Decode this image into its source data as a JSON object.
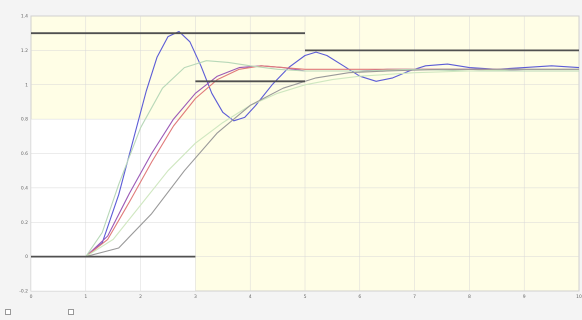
{
  "chart_data": {
    "type": "line",
    "title": "",
    "xlabel": "",
    "ylabel": "",
    "xlim": [
      0,
      10
    ],
    "ylim": [
      -0.2,
      1.4
    ],
    "xticks": [
      0,
      1,
      2,
      3,
      4,
      5,
      6,
      7,
      8,
      9,
      10
    ],
    "yticks": [
      -0.2,
      0,
      0.2,
      0.4,
      0.6,
      0.8,
      1.0,
      1.2,
      1.4
    ],
    "grid": true,
    "background": "#fffee6",
    "white_region": {
      "x": [
        0,
        3
      ],
      "y": [
        -0.2,
        0.8
      ]
    },
    "series": [
      {
        "color": "#5b5bd6",
        "points": [
          [
            0,
            0
          ],
          [
            1.0,
            0
          ],
          [
            1.3,
            0.08
          ],
          [
            1.6,
            0.36
          ],
          [
            1.9,
            0.72
          ],
          [
            2.1,
            0.96
          ],
          [
            2.3,
            1.16
          ],
          [
            2.5,
            1.28
          ],
          [
            2.7,
            1.31
          ],
          [
            2.9,
            1.25
          ],
          [
            3.1,
            1.11
          ],
          [
            3.3,
            0.95
          ],
          [
            3.5,
            0.84
          ],
          [
            3.7,
            0.79
          ],
          [
            3.9,
            0.81
          ],
          [
            4.1,
            0.88
          ],
          [
            4.4,
            1.0
          ],
          [
            4.7,
            1.1
          ],
          [
            5.0,
            1.17
          ],
          [
            5.2,
            1.19
          ],
          [
            5.4,
            1.17
          ],
          [
            5.7,
            1.11
          ],
          [
            6.0,
            1.05
          ],
          [
            6.3,
            1.02
          ],
          [
            6.6,
            1.04
          ],
          [
            6.9,
            1.08
          ],
          [
            7.2,
            1.11
          ],
          [
            7.6,
            1.12
          ],
          [
            8.0,
            1.1
          ],
          [
            8.5,
            1.09
          ],
          [
            9.0,
            1.1
          ],
          [
            9.5,
            1.11
          ],
          [
            10,
            1.1
          ]
        ]
      },
      {
        "color": "#9b59b6",
        "points": [
          [
            0,
            0
          ],
          [
            1.0,
            0
          ],
          [
            1.4,
            0.12
          ],
          [
            1.8,
            0.37
          ],
          [
            2.2,
            0.6
          ],
          [
            2.6,
            0.8
          ],
          [
            3.0,
            0.95
          ],
          [
            3.4,
            1.05
          ],
          [
            3.8,
            1.1
          ],
          [
            4.2,
            1.11
          ],
          [
            4.6,
            1.1
          ],
          [
            5.0,
            1.08
          ],
          [
            5.5,
            1.08
          ],
          [
            6.0,
            1.08
          ],
          [
            6.5,
            1.09
          ],
          [
            7.0,
            1.09
          ],
          [
            8.0,
            1.09
          ],
          [
            9.0,
            1.08
          ],
          [
            10,
            1.08
          ]
        ]
      },
      {
        "color": "#e07a7a",
        "points": [
          [
            0,
            0
          ],
          [
            1.0,
            0
          ],
          [
            1.4,
            0.1
          ],
          [
            1.8,
            0.32
          ],
          [
            2.2,
            0.55
          ],
          [
            2.6,
            0.76
          ],
          [
            3.0,
            0.92
          ],
          [
            3.4,
            1.03
          ],
          [
            3.8,
            1.09
          ],
          [
            4.2,
            1.11
          ],
          [
            4.6,
            1.1
          ],
          [
            5.0,
            1.09
          ],
          [
            6.0,
            1.09
          ],
          [
            7.0,
            1.09
          ],
          [
            8.0,
            1.09
          ],
          [
            10,
            1.09
          ]
        ]
      },
      {
        "color": "#b8d8b8",
        "points": [
          [
            0,
            0
          ],
          [
            1.0,
            0
          ],
          [
            1.3,
            0.14
          ],
          [
            1.6,
            0.42
          ],
          [
            2.0,
            0.75
          ],
          [
            2.4,
            0.98
          ],
          [
            2.8,
            1.1
          ],
          [
            3.2,
            1.14
          ],
          [
            3.6,
            1.13
          ],
          [
            4.0,
            1.11
          ],
          [
            4.5,
            1.09
          ],
          [
            5.0,
            1.08
          ],
          [
            6.0,
            1.08
          ],
          [
            7.0,
            1.09
          ],
          [
            8.0,
            1.08
          ],
          [
            10,
            1.08
          ]
        ]
      },
      {
        "color": "#cfe7c0",
        "points": [
          [
            0,
            0
          ],
          [
            1.0,
            0
          ],
          [
            1.5,
            0.1
          ],
          [
            2.0,
            0.3
          ],
          [
            2.5,
            0.5
          ],
          [
            3.0,
            0.66
          ],
          [
            3.5,
            0.78
          ],
          [
            4.0,
            0.88
          ],
          [
            4.5,
            0.95
          ],
          [
            5.0,
            1.0
          ],
          [
            5.5,
            1.03
          ],
          [
            6.0,
            1.05
          ],
          [
            7.0,
            1.07
          ],
          [
            8.0,
            1.08
          ],
          [
            9.0,
            1.09
          ],
          [
            10,
            1.09
          ]
        ]
      },
      {
        "color": "#999999",
        "points": [
          [
            0,
            0
          ],
          [
            1.0,
            0
          ],
          [
            1.6,
            0.05
          ],
          [
            2.2,
            0.25
          ],
          [
            2.8,
            0.5
          ],
          [
            3.4,
            0.72
          ],
          [
            4.0,
            0.88
          ],
          [
            4.6,
            0.98
          ],
          [
            5.2,
            1.04
          ],
          [
            5.8,
            1.07
          ],
          [
            6.5,
            1.08
          ],
          [
            7.5,
            1.09
          ],
          [
            8.5,
            1.09
          ],
          [
            10,
            1.09
          ]
        ]
      }
    ],
    "reference_lines": [
      {
        "x": [
          0,
          5
        ],
        "y": 1.3
      },
      {
        "x": [
          5,
          10
        ],
        "y": 1.2
      },
      {
        "x": [
          3,
          5
        ],
        "y": 1.02
      },
      {
        "x": [
          0,
          3
        ],
        "y": 0
      }
    ]
  },
  "statusbar": {
    "item1": "",
    "item2": ""
  }
}
